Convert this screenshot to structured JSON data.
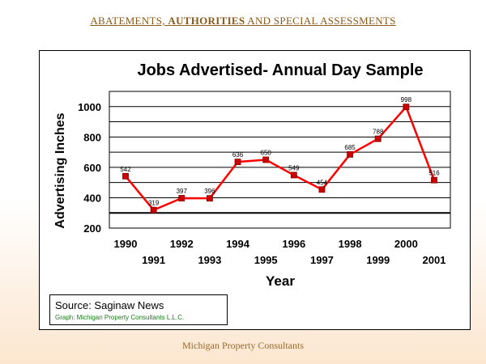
{
  "header": {
    "title_part1": "ABATEMENTS, ",
    "title_part2": "AUTHORITIES",
    "title_part3": " AND SPECIAL ASSESSMENTS"
  },
  "footer": {
    "text": "Michigan Property Consultants"
  },
  "source": {
    "line1": "Source:  Saginaw News",
    "line2": "Graph:  Michigan Property Consultants L.L.C."
  },
  "chart_data": {
    "type": "line",
    "title": "Jobs Advertised- Annual Day Sample",
    "xlabel": "Year",
    "ylabel": "Advertising Inches",
    "categories": [
      "1990",
      "1991",
      "1992",
      "1993",
      "1994",
      "1995",
      "1996",
      "1997",
      "1998",
      "1999",
      "2000",
      "2001"
    ],
    "series": [
      {
        "values": [
          542,
          319,
          397,
          396,
          636,
          650,
          549,
          454,
          685,
          788,
          998,
          516
        ],
        "labels": [
          "542",
          "319",
          "397",
          "396",
          "636",
          "650",
          "549",
          "454",
          "685",
          "788",
          "998",
          "516"
        ]
      }
    ],
    "yticks": [
      200,
      400,
      600,
      800,
      1000
    ],
    "ylim": [
      200,
      1100
    ],
    "grid": true,
    "legend": "none",
    "line_color": "#ff0000",
    "marker_color": "#cc0000"
  }
}
